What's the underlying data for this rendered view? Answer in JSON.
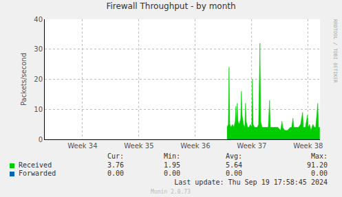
{
  "chart_data": {
    "type": "area",
    "title": "Firewall Throughput - by month",
    "y_label": "Packets/second",
    "x": [
      36.561,
      36.585,
      36.598,
      36.61,
      36.634,
      36.659,
      36.683,
      36.707,
      36.72,
      36.732,
      36.744,
      36.756,
      36.78,
      36.805,
      36.817,
      36.829,
      36.854,
      36.878,
      36.89,
      36.902,
      36.927,
      36.951,
      36.976,
      37.0,
      37.012,
      37.024,
      37.049,
      37.073,
      37.098,
      37.122,
      37.146,
      37.159,
      37.183,
      37.22,
      37.256,
      37.293,
      37.317,
      37.329,
      37.366,
      37.415,
      37.463,
      37.512,
      37.537,
      37.549,
      37.585,
      37.634,
      37.683,
      37.707,
      37.732,
      37.744,
      37.78,
      37.829,
      37.866,
      37.902,
      37.915,
      37.951,
      37.988,
      38.0,
      38.024,
      38.049,
      38.085,
      38.11,
      38.134,
      38.171,
      38.183,
      38.207
    ],
    "series": [
      {
        "name": "Received",
        "color": "#00cc00",
        "values": [
          4,
          5,
          24,
          5,
          4,
          5,
          4,
          6,
          11,
          5,
          12,
          6,
          5,
          7,
          16,
          8,
          5,
          4,
          12,
          6,
          4,
          4,
          5,
          4,
          20,
          5,
          4,
          4,
          4,
          5,
          32,
          6,
          4,
          4,
          4,
          4,
          13,
          4,
          4,
          4,
          4,
          3,
          6,
          4,
          3,
          3,
          4,
          4,
          7,
          4,
          4,
          4,
          5,
          9,
          4,
          4,
          8,
          4,
          5,
          3,
          5,
          4,
          4,
          12,
          4,
          4
        ],
        "stats": [
          "3.76",
          "1.95",
          "5.64",
          "91.20"
        ]
      },
      {
        "name": "Forwarded",
        "color": "#0066b3",
        "values": [
          0,
          0,
          0,
          0,
          0,
          0,
          0,
          0,
          0,
          0,
          0,
          0,
          0,
          0,
          0,
          0,
          0,
          0,
          0,
          0,
          0,
          0,
          0,
          0,
          0,
          0,
          0,
          0,
          0,
          0,
          0,
          0,
          0,
          0,
          0,
          0,
          0,
          0,
          0,
          0,
          0,
          0,
          0,
          0,
          0,
          0,
          0,
          0,
          0,
          0,
          0,
          0,
          0,
          0,
          0,
          0,
          0,
          0,
          0,
          0,
          0,
          0,
          0,
          0,
          0,
          0
        ],
        "stats": [
          "0.00",
          "0.00",
          "0.00",
          "0.00"
        ]
      }
    ],
    "stats_headers": [
      "Cur:",
      "Min:",
      "Avg:",
      "Max:"
    ],
    "xlim": [
      33.33,
      38.21
    ],
    "xticks": [
      {
        "value": 34,
        "label": "Week 34"
      },
      {
        "value": 35,
        "label": "Week 35"
      },
      {
        "value": 36,
        "label": "Week 36"
      },
      {
        "value": 37,
        "label": "Week 37"
      },
      {
        "value": 38,
        "label": "Week 38"
      }
    ],
    "ylim": [
      0,
      40
    ],
    "yticks": [
      0,
      10,
      20,
      30,
      40
    ],
    "grid": true,
    "footer": "Last update: Thu Sep 19 17:58:45 2024",
    "credit": "Munin 2.0.73",
    "side_text": "RRDTOOL / TOBI OETIKER"
  }
}
